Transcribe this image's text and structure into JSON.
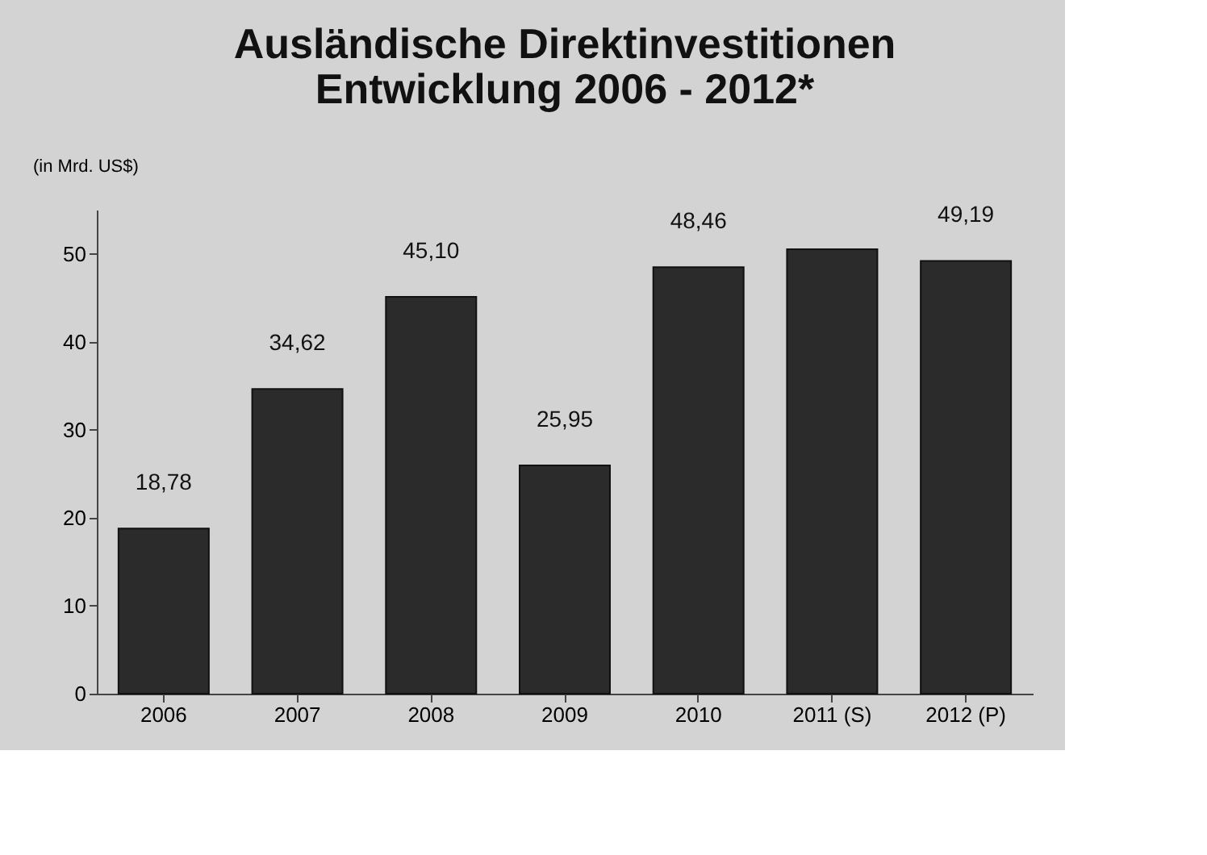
{
  "chart_data": {
    "type": "bar",
    "title": [
      "Ausländische Direktinvestitionen",
      "Entwicklung 2006 - 2012*"
    ],
    "ylabel": "(in Mrd. US$)",
    "categories": [
      "2006",
      "2007",
      "2008",
      "2009",
      "2010",
      "2011 (S)",
      "2012 (P)"
    ],
    "values": [
      18.78,
      34.62,
      45.1,
      25.95,
      48.46,
      50.5,
      49.19
    ],
    "value_labels": [
      "18,78",
      "34,62",
      "45,10",
      "25,95",
      "48,46",
      null,
      "49,19"
    ],
    "color": "#2b2b2b",
    "ylim": [
      0,
      55
    ],
    "yticks": [
      0,
      10,
      20,
      30,
      40,
      50
    ],
    "grid": false
  }
}
